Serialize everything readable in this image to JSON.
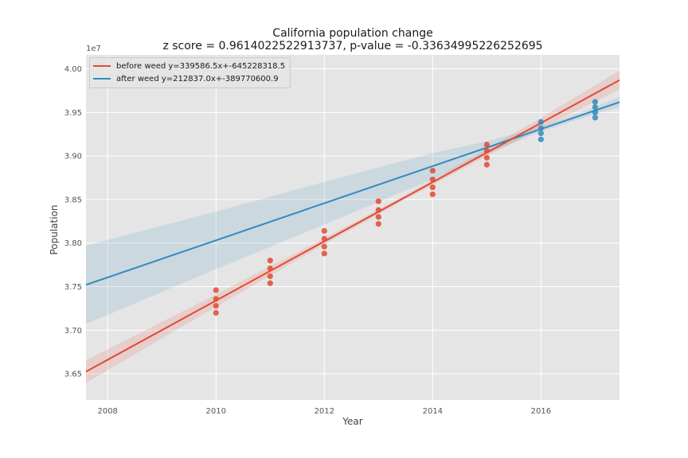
{
  "chart_data": {
    "type": "scatter",
    "title": "California population change",
    "subtitle": "z score = 0.9614022522913737, p-value = -0.33634995226252695",
    "xlabel": "Year",
    "ylabel": "Population",
    "y_offset_label": "1e7",
    "xlim": [
      2007.6,
      2017.45
    ],
    "ylim": [
      36.2,
      40.16
    ],
    "y_units_scale": 1000000.0,
    "x_ticks": [
      2008,
      2010,
      2012,
      2014,
      2016
    ],
    "x_tick_labels": [
      "2008",
      "2010",
      "2012",
      "2014",
      "2016"
    ],
    "y_ticks": [
      36.5,
      37.0,
      37.5,
      38.0,
      38.5,
      39.0,
      39.5,
      40.0
    ],
    "y_tick_labels": [
      "3.65",
      "3.70",
      "3.75",
      "3.80",
      "3.85",
      "3.90",
      "3.95",
      "4.00"
    ],
    "grid": true,
    "legend_position": "top-left",
    "series": [
      {
        "name": "before weed y=339586.5x+-645228318.5",
        "color": "#E24A33",
        "slope": 0.3395865,
        "intercept": -645.2283185,
        "ci_halfwidth_by_x": [
          [
            2007.6,
            0.13
          ],
          [
            2010,
            0.07
          ],
          [
            2012,
            0.035
          ],
          [
            2013.5,
            0.025
          ],
          [
            2015,
            0.04
          ],
          [
            2016,
            0.06
          ],
          [
            2017.45,
            0.11
          ]
        ],
        "points": [
          {
            "x": 2010,
            "y": 37.2
          },
          {
            "x": 2010,
            "y": 37.28
          },
          {
            "x": 2010,
            "y": 37.36
          },
          {
            "x": 2010,
            "y": 37.46
          },
          {
            "x": 2011,
            "y": 37.54
          },
          {
            "x": 2011,
            "y": 37.62
          },
          {
            "x": 2011,
            "y": 37.71
          },
          {
            "x": 2011,
            "y": 37.8
          },
          {
            "x": 2012,
            "y": 37.88
          },
          {
            "x": 2012,
            "y": 37.96
          },
          {
            "x": 2012,
            "y": 38.05
          },
          {
            "x": 2012,
            "y": 38.14
          },
          {
            "x": 2013,
            "y": 38.22
          },
          {
            "x": 2013,
            "y": 38.3
          },
          {
            "x": 2013,
            "y": 38.38
          },
          {
            "x": 2013,
            "y": 38.48
          },
          {
            "x": 2014,
            "y": 38.56
          },
          {
            "x": 2014,
            "y": 38.64
          },
          {
            "x": 2014,
            "y": 38.73
          },
          {
            "x": 2014,
            "y": 38.83
          },
          {
            "x": 2015,
            "y": 38.9
          },
          {
            "x": 2015,
            "y": 38.98
          },
          {
            "x": 2015,
            "y": 39.06
          },
          {
            "x": 2015,
            "y": 39.13
          }
        ]
      },
      {
        "name": "after weed y=212837.0x+-389770600.9",
        "color": "#348ABD",
        "slope": 0.212837,
        "intercept": -389.7706009,
        "ci_halfwidth_by_x": [
          [
            2007.6,
            0.45
          ],
          [
            2010,
            0.33
          ],
          [
            2012,
            0.245
          ],
          [
            2014,
            0.15
          ],
          [
            2015,
            0.07
          ],
          [
            2016,
            0.03
          ],
          [
            2017,
            0.04
          ],
          [
            2017.45,
            0.06
          ]
        ],
        "points": [
          {
            "x": 2016,
            "y": 39.19
          },
          {
            "x": 2016,
            "y": 39.26
          },
          {
            "x": 2016,
            "y": 39.32
          },
          {
            "x": 2016,
            "y": 39.39
          },
          {
            "x": 2017,
            "y": 39.44
          },
          {
            "x": 2017,
            "y": 39.5
          },
          {
            "x": 2017,
            "y": 39.56
          },
          {
            "x": 2017,
            "y": 39.62
          }
        ]
      }
    ]
  }
}
